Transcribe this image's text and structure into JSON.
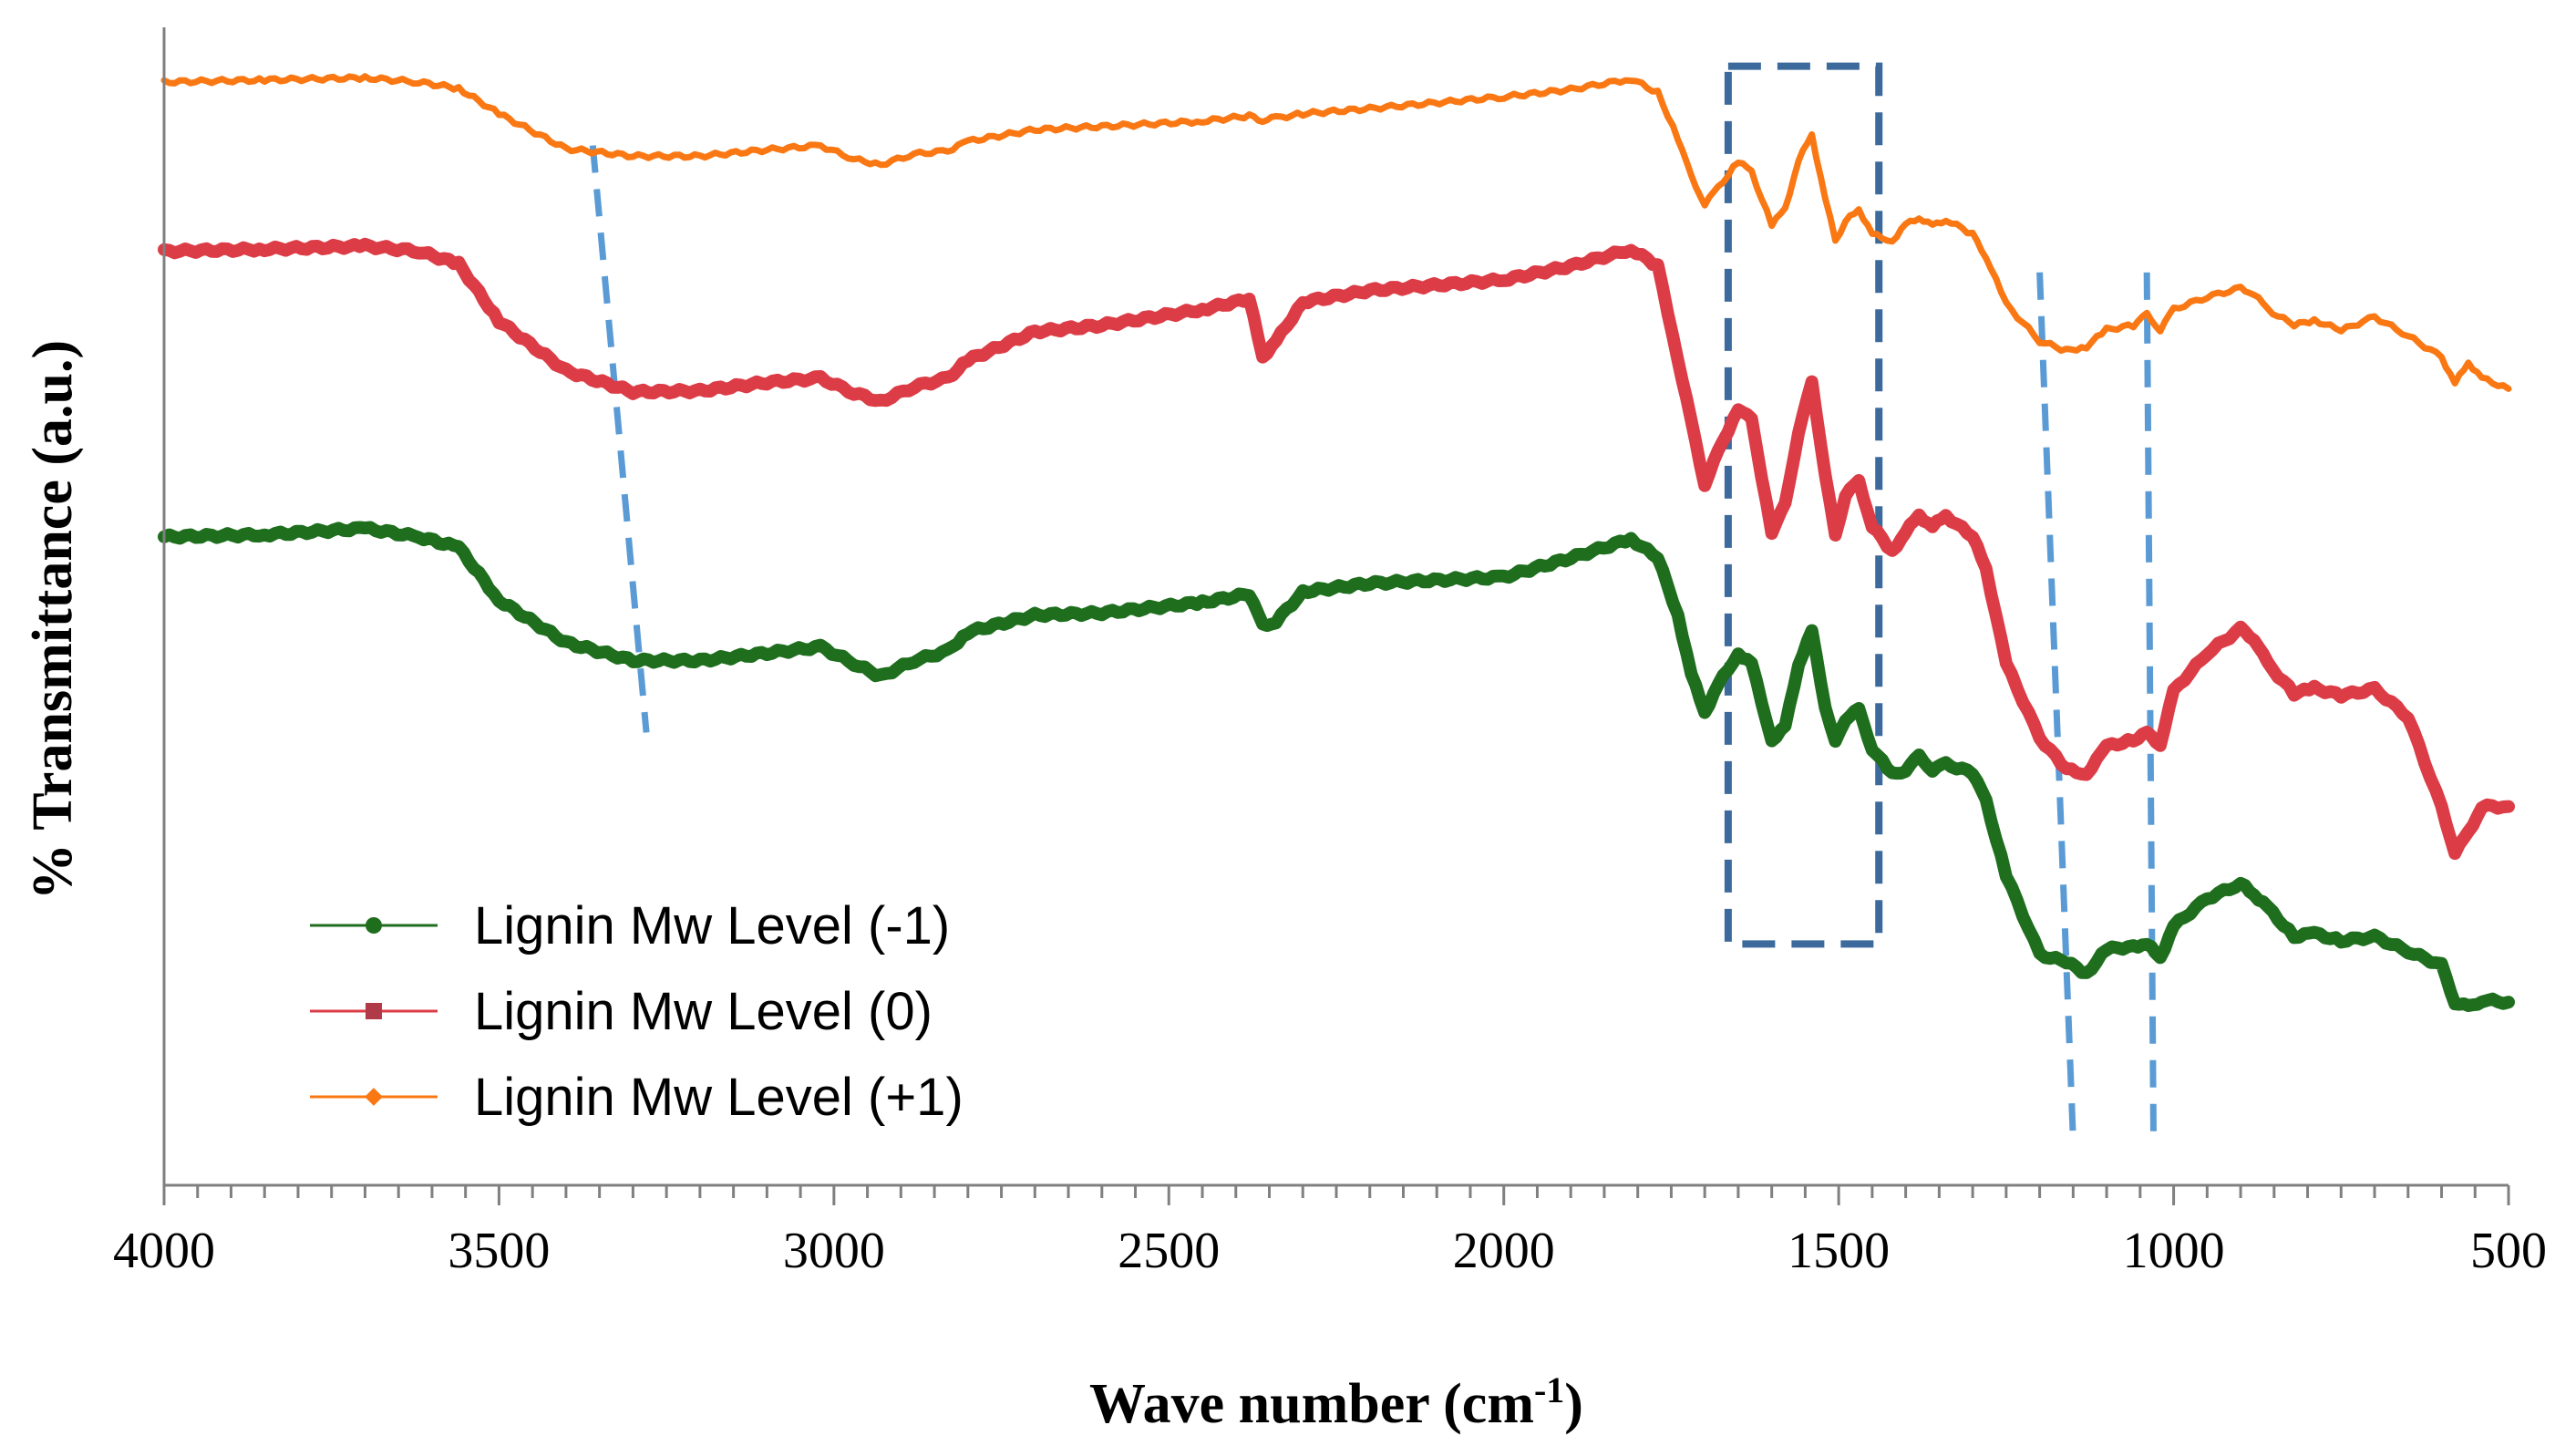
{
  "chart_data": {
    "type": "line",
    "title": "",
    "xlabel": "Wave number (cm",
    "xlabel_sup": "-1",
    "xlabel_end": ")",
    "ylabel": "% Transmittance (a.u.)",
    "xlim": [
      4000,
      500
    ],
    "ylim": [
      0,
      100
    ],
    "x_reversed": true,
    "x_ticks": [
      4000,
      3500,
      3000,
      2500,
      2000,
      1500,
      1000,
      500
    ],
    "x_tick_labels": [
      "4000",
      "3500",
      "3000",
      "2500",
      "2000",
      "1500",
      "1000",
      "500"
    ],
    "legend_position": "bottom-left",
    "series": [
      {
        "name": "Lignin Mw Level (-1)",
        "color": "#1e6e1e",
        "marker": "circle",
        "points": [
          [
            4000,
            57
          ],
          [
            3850,
            57.2
          ],
          [
            3700,
            57.8
          ],
          [
            3620,
            57
          ],
          [
            3560,
            56
          ],
          [
            3500,
            51
          ],
          [
            3400,
            47
          ],
          [
            3300,
            45.3
          ],
          [
            3200,
            45.3
          ],
          [
            3100,
            46
          ],
          [
            3020,
            46.6
          ],
          [
            2970,
            45
          ],
          [
            2930,
            43.8
          ],
          [
            2880,
            45.3
          ],
          [
            2830,
            46.2
          ],
          [
            2800,
            48
          ],
          [
            2700,
            49.6
          ],
          [
            2600,
            49.8
          ],
          [
            2450,
            50.8
          ],
          [
            2380,
            51.6
          ],
          [
            2360,
            48.6
          ],
          [
            2340,
            49
          ],
          [
            2300,
            51.8
          ],
          [
            2200,
            52.6
          ],
          [
            2000,
            53.2
          ],
          [
            1900,
            55
          ],
          [
            1810,
            56.8
          ],
          [
            1770,
            55
          ],
          [
            1740,
            49.6
          ],
          [
            1720,
            44
          ],
          [
            1700,
            40.4
          ],
          [
            1680,
            43
          ],
          [
            1650,
            46
          ],
          [
            1630,
            45
          ],
          [
            1600,
            37.8
          ],
          [
            1580,
            39
          ],
          [
            1560,
            45
          ],
          [
            1540,
            48
          ],
          [
            1520,
            41
          ],
          [
            1505,
            37.5
          ],
          [
            1490,
            39.8
          ],
          [
            1470,
            40.6
          ],
          [
            1450,
            37
          ],
          [
            1420,
            34.5
          ],
          [
            1400,
            35
          ],
          [
            1380,
            36.2
          ],
          [
            1360,
            35
          ],
          [
            1340,
            35.5
          ],
          [
            1300,
            34.7
          ],
          [
            1280,
            32
          ],
          [
            1250,
            25
          ],
          [
            1200,
            17.5
          ],
          [
            1160,
            16.8
          ],
          [
            1130,
            15.7
          ],
          [
            1100,
            18
          ],
          [
            1060,
            18.3
          ],
          [
            1040,
            18.5
          ],
          [
            1020,
            17.2
          ],
          [
            1000,
            20.2
          ],
          [
            950,
            22.8
          ],
          [
            900,
            24.2
          ],
          [
            880,
            23.2
          ],
          [
            860,
            22
          ],
          [
            820,
            19.2
          ],
          [
            790,
            19.5
          ],
          [
            750,
            18.8
          ],
          [
            700,
            19.2
          ],
          [
            650,
            17.8
          ],
          [
            600,
            16.5
          ],
          [
            580,
            13
          ],
          [
            560,
            12.5
          ],
          [
            540,
            13.2
          ],
          [
            500,
            13
          ]
        ]
      },
      {
        "name": "Lignin Mw Level (0)",
        "color": "#dc3c46",
        "marker": "square",
        "points": [
          [
            4000,
            84
          ],
          [
            3850,
            84.2
          ],
          [
            3700,
            84.5
          ],
          [
            3620,
            84
          ],
          [
            3560,
            82.8
          ],
          [
            3500,
            77.4
          ],
          [
            3400,
            72.7
          ],
          [
            3300,
            70.7
          ],
          [
            3200,
            70.8
          ],
          [
            3100,
            71.6
          ],
          [
            3020,
            72
          ],
          [
            2970,
            70.6
          ],
          [
            2930,
            69.8
          ],
          [
            2880,
            71.2
          ],
          [
            2830,
            72
          ],
          [
            2800,
            73.7
          ],
          [
            2700,
            76.4
          ],
          [
            2600,
            77
          ],
          [
            2450,
            78.5
          ],
          [
            2380,
            79.5
          ],
          [
            2360,
            74
          ],
          [
            2340,
            75.5
          ],
          [
            2300,
            79.2
          ],
          [
            2200,
            80.3
          ],
          [
            2000,
            81.3
          ],
          [
            1900,
            82.6
          ],
          [
            1810,
            84.2
          ],
          [
            1770,
            82.6
          ],
          [
            1740,
            73.8
          ],
          [
            1720,
            67.8
          ],
          [
            1700,
            62
          ],
          [
            1680,
            65
          ],
          [
            1650,
            69.2
          ],
          [
            1630,
            68
          ],
          [
            1600,
            57.5
          ],
          [
            1580,
            60
          ],
          [
            1560,
            67
          ],
          [
            1540,
            71.5
          ],
          [
            1520,
            63
          ],
          [
            1505,
            57
          ],
          [
            1490,
            61
          ],
          [
            1470,
            62.2
          ],
          [
            1450,
            58
          ],
          [
            1420,
            55.6
          ],
          [
            1400,
            57.5
          ],
          [
            1380,
            59
          ],
          [
            1360,
            58
          ],
          [
            1340,
            59
          ],
          [
            1300,
            57
          ],
          [
            1280,
            54
          ],
          [
            1250,
            45
          ],
          [
            1200,
            38
          ],
          [
            1160,
            35
          ],
          [
            1130,
            34.6
          ],
          [
            1100,
            37.2
          ],
          [
            1060,
            37.8
          ],
          [
            1040,
            38.4
          ],
          [
            1020,
            37.4
          ],
          [
            1000,
            42.4
          ],
          [
            950,
            46
          ],
          [
            900,
            48.3
          ],
          [
            880,
            47.4
          ],
          [
            860,
            45
          ],
          [
            820,
            42.2
          ],
          [
            790,
            42.7
          ],
          [
            750,
            42
          ],
          [
            700,
            42.6
          ],
          [
            650,
            40
          ],
          [
            600,
            31.4
          ],
          [
            580,
            27.2
          ],
          [
            560,
            29
          ],
          [
            540,
            31.5
          ],
          [
            500,
            31.5
          ]
        ]
      },
      {
        "name": "Lignin Mw Level (+1)",
        "color": "#fa7814",
        "marker": "diamond",
        "points": [
          [
            4000,
            100
          ],
          [
            3850,
            100.2
          ],
          [
            3700,
            100.4
          ],
          [
            3620,
            100
          ],
          [
            3560,
            99.4
          ],
          [
            3500,
            97
          ],
          [
            3400,
            93.7
          ],
          [
            3300,
            93
          ],
          [
            3200,
            93
          ],
          [
            3100,
            93.6
          ],
          [
            3020,
            94
          ],
          [
            2970,
            92.7
          ],
          [
            2930,
            92.2
          ],
          [
            2880,
            93.2
          ],
          [
            2830,
            93.5
          ],
          [
            2800,
            94.4
          ],
          [
            2700,
            95.5
          ],
          [
            2600,
            95.8
          ],
          [
            2450,
            96.3
          ],
          [
            2380,
            96.8
          ],
          [
            2360,
            96.4
          ],
          [
            2340,
            96.6
          ],
          [
            2300,
            97
          ],
          [
            2200,
            97.5
          ],
          [
            2000,
            98.6
          ],
          [
            1900,
            99.3
          ],
          [
            1810,
            100.3
          ],
          [
            1770,
            99
          ],
          [
            1740,
            94.7
          ],
          [
            1720,
            91
          ],
          [
            1700,
            88.5
          ],
          [
            1680,
            90
          ],
          [
            1650,
            92.5
          ],
          [
            1630,
            91.5
          ],
          [
            1600,
            86.5
          ],
          [
            1580,
            88
          ],
          [
            1560,
            92.6
          ],
          [
            1540,
            95
          ],
          [
            1520,
            89
          ],
          [
            1505,
            85
          ],
          [
            1490,
            86.8
          ],
          [
            1470,
            88
          ],
          [
            1450,
            85.6
          ],
          [
            1420,
            85
          ],
          [
            1400,
            86.5
          ],
          [
            1380,
            87.2
          ],
          [
            1360,
            86.4
          ],
          [
            1340,
            87
          ],
          [
            1300,
            85.6
          ],
          [
            1280,
            83.5
          ],
          [
            1250,
            79
          ],
          [
            1200,
            75.5
          ],
          [
            1160,
            74.6
          ],
          [
            1130,
            75
          ],
          [
            1100,
            76.6
          ],
          [
            1060,
            77
          ],
          [
            1040,
            78
          ],
          [
            1020,
            76.6
          ],
          [
            1000,
            78.5
          ],
          [
            950,
            79.7
          ],
          [
            900,
            80.5
          ],
          [
            880,
            80
          ],
          [
            860,
            78.5
          ],
          [
            820,
            77
          ],
          [
            790,
            77.5
          ],
          [
            750,
            76.5
          ],
          [
            700,
            77.8
          ],
          [
            650,
            76
          ],
          [
            600,
            74
          ],
          [
            580,
            71.5
          ],
          [
            560,
            73.5
          ],
          [
            540,
            72
          ],
          [
            500,
            71
          ]
        ]
      }
    ],
    "annotations": {
      "dashed_lines": [
        {
          "from": [
            3360,
            94
          ],
          "to": [
            3280,
            38.5
          ],
          "color": "#5b9bd5"
        },
        {
          "from": [
            1200,
            82
          ],
          "to": [
            1150,
            0
          ],
          "color": "#5b9bd5"
        },
        {
          "from": [
            1040,
            82
          ],
          "to": [
            1030,
            0
          ],
          "color": "#5b9bd5"
        }
      ],
      "dashed_box": {
        "x_from": 1665,
        "x_to": 1440,
        "y_from": 18.5,
        "y_to": 101.5,
        "color": "#3d6a9c"
      }
    }
  }
}
